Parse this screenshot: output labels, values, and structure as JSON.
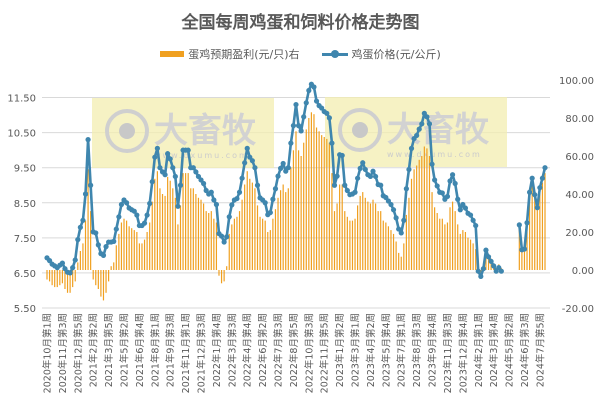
{
  "chart_data": {
    "type": "bar+line",
    "title": "全国每周鸡蛋和饲料价格走势图",
    "legend_placement": "top",
    "grid": true,
    "x_tick_labels": [
      "2020年10月第1周",
      "2020年11月第3周",
      "2020年12月第5周",
      "2021年2月第2周",
      "2021年3月第5周",
      "2021年5月第2周",
      "2021年6月第4周",
      "2021年8月第1周",
      "2021年9月第3周",
      "2021年11月第1周",
      "2021年12月第3周",
      "2022年1月第4周",
      "2022年3月第3周",
      "2022年4月第4周",
      "2022年6月第2周",
      "2022年7月第3周",
      "2022年8月第5周",
      "2022年10月第3周",
      "2022年11月第5周",
      "2023年1月第2周",
      "2023年3月第1周",
      "2023年4月第2周",
      "2023年5月第4周",
      "2023年7月第1周",
      "2023年8月第3周",
      "2023年9月第4周",
      "2023年11月第3周",
      "2023年12月第4周",
      "2024年2月第1周",
      "2024年3月第4周",
      "2024年5月第2周",
      "2024年6月第3周",
      "2024年7月第5周"
    ],
    "x_tick_every_weeks": 6,
    "left_axis": {
      "ticks": [
        "11.50",
        "10.50",
        "9.50",
        "8.50",
        "7.50",
        "6.50",
        "5.50"
      ],
      "range": [
        5.5,
        12.0
      ]
    },
    "right_axis": {
      "ticks": [
        "100.00",
        "80.00",
        "60.00",
        "40.00",
        "20.00",
        "0.00",
        "-20.00"
      ],
      "range": [
        -20,
        100
      ]
    },
    "series": [
      {
        "name": "蛋鸡预期盈利(元/只)右",
        "type": "bar",
        "axis": "right",
        "color": "#f0a020",
        "values": [
          -5,
          -6,
          -8,
          -9,
          -9,
          -8,
          -7,
          -10,
          -12,
          -12,
          -9,
          -6,
          4,
          10,
          14,
          26,
          53,
          31,
          -5,
          -8,
          -10,
          -14,
          -16,
          -12,
          -6,
          2,
          4,
          13,
          19,
          25,
          27,
          26,
          23,
          22,
          21,
          20,
          14,
          14,
          16,
          20,
          25,
          36,
          48,
          52,
          43,
          40,
          39,
          49,
          47,
          43,
          38,
          24,
          34,
          51,
          51,
          51,
          43,
          43,
          40,
          38,
          37,
          35,
          31,
          30,
          31,
          27,
          25,
          -3,
          -7,
          -6,
          2,
          19,
          24,
          27,
          28,
          31,
          37,
          45,
          52,
          48,
          46,
          43,
          34,
          28,
          27,
          26,
          20,
          21,
          27,
          32,
          38,
          42,
          45,
          41,
          43,
          54,
          63,
          73,
          63,
          60,
          67,
          74,
          80,
          83,
          82,
          75,
          73,
          71,
          70,
          69,
          67,
          51,
          31,
          35,
          45,
          45,
          31,
          28,
          26,
          26,
          27,
          34,
          39,
          41,
          38,
          36,
          35,
          37,
          35,
          31,
          31,
          26,
          25,
          23,
          21,
          19,
          15,
          9,
          7,
          14,
          29,
          38,
          48,
          53,
          55,
          58,
          60,
          65,
          64,
          60,
          41,
          33,
          30,
          27,
          27,
          24,
          25,
          33,
          36,
          31,
          24,
          19,
          21,
          20,
          17,
          16,
          14,
          11,
          1,
          -2,
          2,
          11,
          8,
          6,
          3,
          1,
          3,
          1,
          null,
          null,
          null,
          null,
          null,
          null,
          23,
          11,
          12,
          24,
          39,
          46,
          38,
          32,
          41,
          46,
          51
        ]
      },
      {
        "name": "鸡蛋价格(元/公斤)",
        "type": "line",
        "axis": "left",
        "color": "#3f86ae",
        "values": [
          6.93,
          6.85,
          6.75,
          6.7,
          6.65,
          6.72,
          6.78,
          6.62,
          6.52,
          6.5,
          6.65,
          6.87,
          7.45,
          7.8,
          8.0,
          8.75,
          10.3,
          9.0,
          7.67,
          7.64,
          7.3,
          7.05,
          7.0,
          7.25,
          7.38,
          7.38,
          7.4,
          7.75,
          8.1,
          8.45,
          8.58,
          8.5,
          8.35,
          8.3,
          8.26,
          8.15,
          7.85,
          7.85,
          7.92,
          8.15,
          8.48,
          9.1,
          9.8,
          10.05,
          9.5,
          9.38,
          9.3,
          9.9,
          9.75,
          9.5,
          9.25,
          8.4,
          9.0,
          10.0,
          10.0,
          10.0,
          9.5,
          9.5,
          9.38,
          9.25,
          9.15,
          9.05,
          8.85,
          8.75,
          8.8,
          8.58,
          8.45,
          7.62,
          7.55,
          7.38,
          7.53,
          8.1,
          8.44,
          8.58,
          8.62,
          8.8,
          9.2,
          9.64,
          10.05,
          9.8,
          9.7,
          9.5,
          9.0,
          8.64,
          8.58,
          8.5,
          8.16,
          8.22,
          8.6,
          8.9,
          9.26,
          9.48,
          9.62,
          9.4,
          9.5,
          10.2,
          10.7,
          11.3,
          10.7,
          10.55,
          10.95,
          11.35,
          11.7,
          11.88,
          11.8,
          11.4,
          11.27,
          11.2,
          11.1,
          11.05,
          10.92,
          10.2,
          9.0,
          9.26,
          9.87,
          9.85,
          9.0,
          8.85,
          8.73,
          8.75,
          8.8,
          9.2,
          9.48,
          9.64,
          9.45,
          9.3,
          9.25,
          9.4,
          9.25,
          9.02,
          9.0,
          8.7,
          8.65,
          8.55,
          8.45,
          8.3,
          8.07,
          7.75,
          7.64,
          8.0,
          8.9,
          9.45,
          10.05,
          10.33,
          10.42,
          10.6,
          10.75,
          11.05,
          10.95,
          10.75,
          9.6,
          9.15,
          8.98,
          8.8,
          8.78,
          8.6,
          8.68,
          9.12,
          9.3,
          9.05,
          8.6,
          8.3,
          8.45,
          8.35,
          8.2,
          8.15,
          8.0,
          7.85,
          6.55,
          6.4,
          6.62,
          7.15,
          6.96,
          6.83,
          6.7,
          6.55,
          6.65,
          6.55,
          null,
          null,
          null,
          null,
          null,
          null,
          7.87,
          7.16,
          7.18,
          7.93,
          8.8,
          9.2,
          8.73,
          8.36,
          8.93,
          9.2,
          9.5
        ]
      }
    ],
    "watermark": {
      "text": "大畜牧",
      "url_text": "www.dxumu.com",
      "color": "#f3eeb0"
    }
  }
}
